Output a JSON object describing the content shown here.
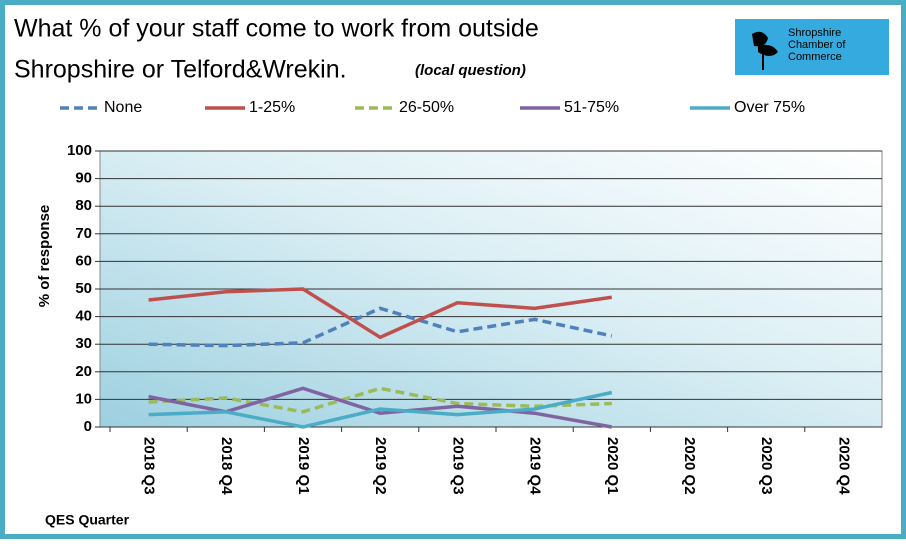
{
  "chart_data": {
    "type": "line",
    "title": [
      "What % of your staff come to work from outside",
      "Shropshire or Telford&Wrekin."
    ],
    "subtitle": "(local question)",
    "y_label": "% of response",
    "x_label": "QES Quarter",
    "categories": [
      "2018 Q3",
      "2018 Q4",
      "2019 Q1",
      "2019 Q2",
      "2019 Q3",
      "2019 Q4",
      "2020 Q1",
      "2020 Q2",
      "2020 Q3",
      "2020 Q4"
    ],
    "series": [
      {
        "name": "None",
        "color": "#4f81bd",
        "dashed": true,
        "values": [
          30,
          29.5,
          30.5,
          43,
          34.5,
          39,
          33,
          null,
          null,
          null
        ]
      },
      {
        "name": "1-25%",
        "color": "#c0504d",
        "dashed": false,
        "values": [
          46,
          49,
          50,
          32.5,
          45,
          43,
          47,
          null,
          null,
          null
        ]
      },
      {
        "name": "26-50%",
        "color": "#9bbb59",
        "dashed": true,
        "values": [
          9,
          10.5,
          5.5,
          14,
          8.5,
          7.5,
          8.5,
          null,
          null,
          null
        ]
      },
      {
        "name": "51-75%",
        "color": "#8064a2",
        "dashed": false,
        "values": [
          11,
          5.5,
          14,
          5,
          7.5,
          5,
          0,
          null,
          null,
          null
        ]
      },
      {
        "name": "Over 75%",
        "color": "#4bacc6",
        "dashed": false,
        "values": [
          4.5,
          5.5,
          0,
          6.5,
          4.5,
          6.5,
          12.5,
          null,
          null,
          null
        ]
      }
    ],
    "ylim": [
      0,
      100
    ],
    "yticks": [
      0,
      10,
      20,
      30,
      40,
      50,
      60,
      70,
      80,
      90,
      100
    ],
    "grid": true,
    "legend": "top"
  },
  "logo": {
    "lines": [
      "Shropshire",
      "Chamber of",
      "Commerce"
    ]
  }
}
